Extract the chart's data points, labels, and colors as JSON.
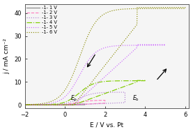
{
  "xlabel": "E / V vs. Pt",
  "ylabel": "j / mA cm⁻²",
  "xlim": [
    -2,
    6.2
  ],
  "ylim": [
    -1.5,
    44
  ],
  "xticks": [
    -2,
    0,
    2,
    4,
    6
  ],
  "yticks": [
    0,
    10,
    20,
    30,
    40
  ],
  "legend_labels": [
    "-1- 1 V",
    "-1- 2 V",
    "-1- 3 V",
    "-1- 4 V",
    "-1- 5 V",
    "-1- 6 V"
  ],
  "line_colors": [
    "#888888",
    "#ff80c0",
    "#b07fd0",
    "#80cc00",
    "#cc66ff",
    "#888800"
  ],
  "bg_color": "#f5f5f5",
  "Ep_x": 0.45,
  "Eb_x": 3.55
}
